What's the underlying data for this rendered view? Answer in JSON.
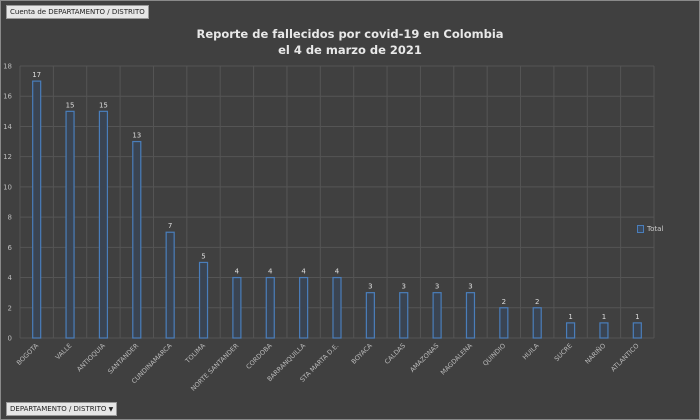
{
  "pivot": {
    "value_field_button": "Cuenta de DEPARTAMENTO / DISTRITO",
    "axis_field_button": "DEPARTAMENTO / DISTRITO",
    "axis_field_dropdown_icon": "triangle-down"
  },
  "chart_data": {
    "type": "bar",
    "title": "Reporte de fallecidos por covid-19 en Colombia",
    "subtitle": "el 4 de marzo de 2021",
    "categories": [
      "BOGOTA",
      "VALLE",
      "ANTIOQUIA",
      "SANTANDER",
      "CUNDINAMARCA",
      "TOLIMA",
      "NORTE SANTANDER",
      "CORDOBA",
      "BARRANQUILLA",
      "STA MARTA D.E.",
      "BOYACA",
      "CALDAS",
      "AMAZONAS",
      "MAGDALENA",
      "QUINDIO",
      "HUILA",
      "SUCRE",
      "NARIÑO",
      "ATLANTICO"
    ],
    "series": [
      {
        "name": "Total",
        "values": [
          17,
          15,
          15,
          13,
          7,
          5,
          4,
          4,
          4,
          4,
          3,
          3,
          3,
          3,
          2,
          2,
          1,
          1,
          1
        ],
        "color": "#4a7ebb"
      }
    ],
    "yticks": [
      0,
      2,
      4,
      6,
      8,
      10,
      12,
      14,
      16,
      18
    ],
    "ylim": [
      0,
      18
    ],
    "grid": true,
    "data_labels": true,
    "legend_position": "right",
    "background": "#404040"
  }
}
